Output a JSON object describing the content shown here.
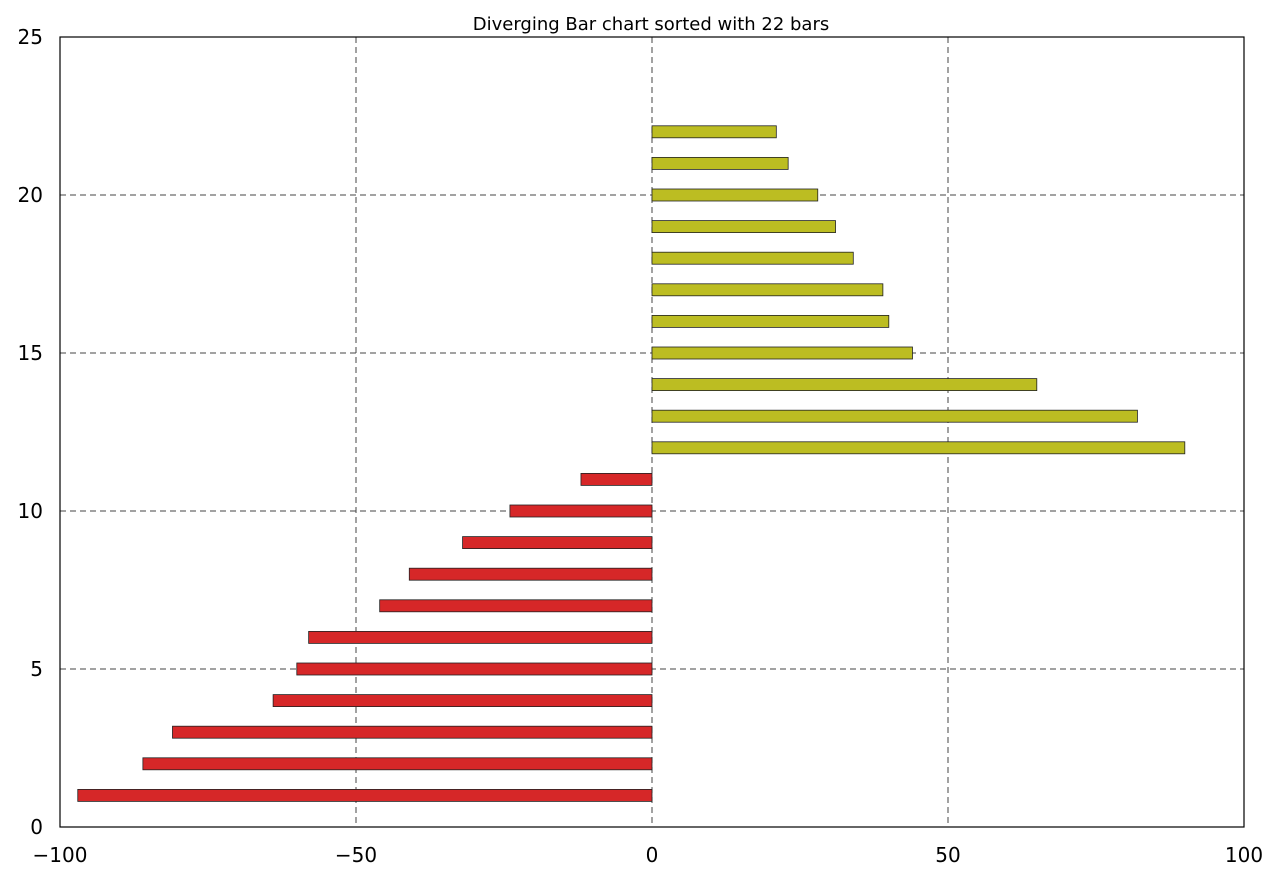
{
  "chart_data": {
    "type": "bar",
    "orientation": "horizontal",
    "title": "Diverging Bar chart sorted with 22 bars",
    "xlabel": "",
    "ylabel": "",
    "xlim": [
      -100,
      100
    ],
    "ylim": [
      0,
      25
    ],
    "xticks": [
      -100,
      -50,
      0,
      50,
      100
    ],
    "xtick_labels": [
      "−100",
      "−50",
      "0",
      "50",
      "100"
    ],
    "yticks": [
      0,
      5,
      10,
      15,
      20,
      25
    ],
    "ytick_labels": [
      "0",
      "5",
      "10",
      "15",
      "20",
      "25"
    ],
    "grid": true,
    "colors": {
      "negative": "#d62728",
      "positive": "#bcbd22"
    },
    "y": [
      1,
      2,
      3,
      4,
      5,
      6,
      7,
      8,
      9,
      10,
      11,
      12,
      13,
      14,
      15,
      16,
      17,
      18,
      19,
      20,
      21,
      22
    ],
    "values": [
      -97,
      -86,
      -81,
      -64,
      -60,
      -58,
      -46,
      -41,
      -32,
      -24,
      -12,
      90,
      82,
      65,
      44,
      40,
      39,
      34,
      31,
      28,
      23,
      21
    ]
  }
}
